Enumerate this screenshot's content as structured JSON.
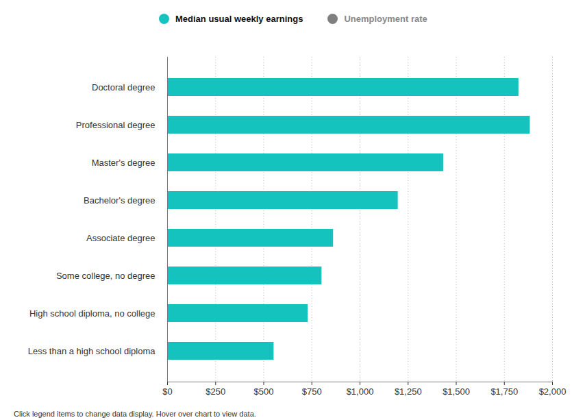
{
  "chart_data": {
    "type": "bar",
    "orientation": "horizontal",
    "categories": [
      "Doctoral degree",
      "Professional degree",
      "Master's degree",
      "Bachelor's degree",
      "Associate degree",
      "Some college, no degree",
      "High school diploma, no college",
      "Less than a high school diploma"
    ],
    "series": [
      {
        "name": "Median usual weekly earnings",
        "color": "#14c3bd",
        "values": [
          1825,
          1884,
          1434,
          1198,
          862,
          802,
          730,
          553
        ]
      },
      {
        "name": "Unemployment rate",
        "color": "#7f7f7f",
        "values": [
          null,
          null,
          null,
          null,
          null,
          null,
          null,
          null
        ]
      }
    ],
    "xlim": [
      0,
      2000
    ],
    "xticks": [
      {
        "value": 0,
        "label": "$0"
      },
      {
        "value": 250,
        "label": "$250"
      },
      {
        "value": 500,
        "label": "$500"
      },
      {
        "value": 750,
        "label": "$750"
      },
      {
        "value": 1000,
        "label": "$1,000"
      },
      {
        "value": 1250,
        "label": "$1,250"
      },
      {
        "value": 1500,
        "label": "$1,500"
      },
      {
        "value": 1750,
        "label": "$1,750"
      },
      {
        "value": 2000,
        "label": "$2,000"
      }
    ],
    "grid": true,
    "legend": "top",
    "caption": "Click legend items to change data display. Hover over chart to view data."
  }
}
